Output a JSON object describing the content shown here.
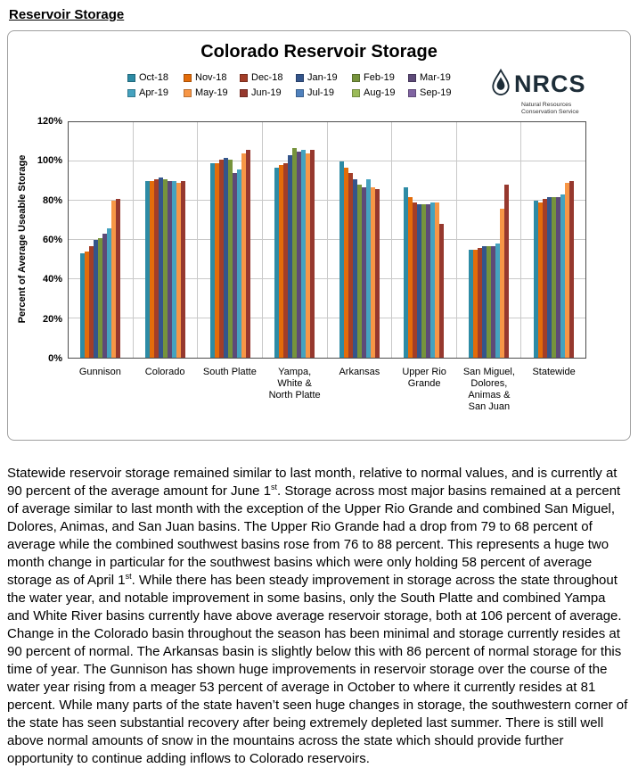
{
  "page": {
    "heading": "Reservoir Storage"
  },
  "logo": {
    "name": "NRCS",
    "subtitle": "Natural Resources\nConservation Service"
  },
  "chart_data": {
    "type": "bar",
    "title": "Colorado Reservoir Storage",
    "xlabel": "",
    "ylabel": "Percent of Average Useable Storage",
    "ylim": [
      0,
      120
    ],
    "ytick_step": 20,
    "ytick_suffix": "%",
    "grid": true,
    "legend_position": "top",
    "categories": [
      "Gunnison",
      "Colorado",
      "South Platte",
      "Yampa,\nWhite &\nNorth Platte",
      "Arkansas",
      "Upper Rio\nGrande",
      "San Miguel,\nDolores,\nAnimas &\nSan Juan",
      "Statewide"
    ],
    "series": [
      {
        "name": "Oct-18",
        "color": "#2D8BA5",
        "values": [
          53,
          90,
          99,
          97,
          100,
          87,
          55,
          80
        ]
      },
      {
        "name": "Nov-18",
        "color": "#E36C0A",
        "values": [
          54,
          90,
          99,
          98,
          97,
          82,
          55,
          79
        ]
      },
      {
        "name": "Dec-18",
        "color": "#A33E28",
        "values": [
          57,
          91,
          101,
          99,
          94,
          79,
          56,
          81
        ]
      },
      {
        "name": "Jan-19",
        "color": "#34558B",
        "values": [
          60,
          92,
          102,
          103,
          91,
          78,
          57,
          82
        ]
      },
      {
        "name": "Feb-19",
        "color": "#76933C",
        "values": [
          61,
          91,
          101,
          107,
          88,
          78,
          57,
          82
        ]
      },
      {
        "name": "Mar-19",
        "color": "#5D4A78",
        "values": [
          63,
          90,
          94,
          105,
          87,
          78,
          57,
          82
        ]
      },
      {
        "name": "Apr-19",
        "color": "#45A2BF",
        "values": [
          66,
          90,
          96,
          106,
          91,
          79,
          58,
          83
        ]
      },
      {
        "name": "May-19",
        "color": "#F79646",
        "values": [
          80,
          89,
          104,
          104,
          87,
          79,
          76,
          89
        ]
      },
      {
        "name": "Jun-19",
        "color": "#96382E",
        "values": [
          81,
          90,
          106,
          106,
          86,
          68,
          88,
          90
        ]
      },
      {
        "name": "Jul-19",
        "color": "#4F81BD",
        "values": []
      },
      {
        "name": "Aug-19",
        "color": "#9BBB59",
        "values": []
      },
      {
        "name": "Sep-19",
        "color": "#8064A2",
        "values": []
      }
    ]
  },
  "body": {
    "segments": [
      {
        "text": "Statewide reservoir storage remained similar to last month, relative to normal values, and is currently at 90 percent of the average amount for June 1"
      },
      {
        "sup": "st"
      },
      {
        "text": ". Storage across most major basins remained at a percent of average similar to last month with the exception of the Upper Rio Grande and combined San Miguel, Dolores, Animas, and San Juan basins. The Upper Rio Grande had a drop from 79 to 68 percent of average while the combined southwest basins rose from 76 to 88 percent. This represents a huge two month change in particular for the southwest basins which were only holding 58 percent of average storage as of April 1"
      },
      {
        "sup": "st"
      },
      {
        "text": ". While there has been steady improvement in storage across the state throughout the water year, and notable improvement in some basins, only the South Platte and combined Yampa and White River basins currently have above average reservoir storage, both at 106 percent of average. Change in the Colorado basin throughout the season has been minimal and storage currently resides at 90 percent of normal. The Arkansas basin is slightly below this with 86 percent of normal storage for this time of year. The Gunnison has shown huge improvements in reservoir storage over the course of the water year rising from a meager 53 percent of average in October to where it currently resides at 81 percent. While many parts of the state haven’t seen huge changes in storage, the southwestern corner of the state has seen substantial recovery after being extremely depleted last summer. There is still well above normal amounts of snow in the mountains across the state which should provide further opportunity to continue adding inflows to Colorado reservoirs."
      }
    ]
  }
}
